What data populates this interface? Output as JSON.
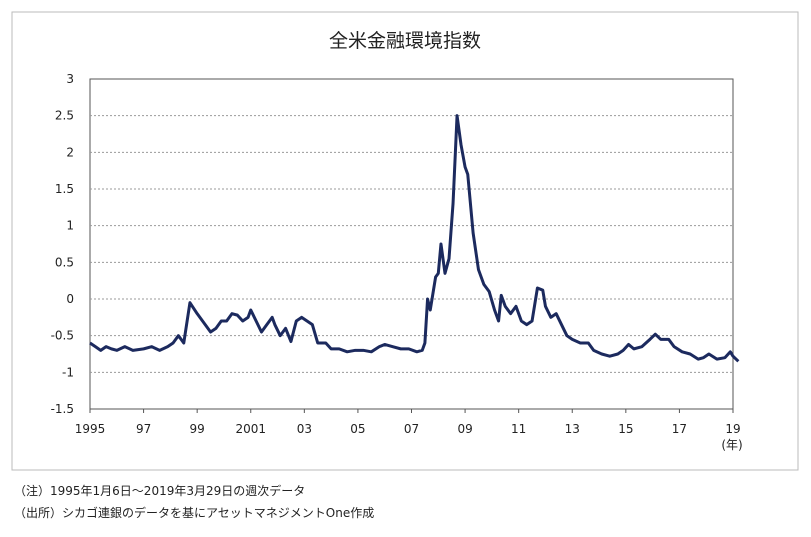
{
  "chart_data": {
    "type": "line",
    "title": "全米金融環境指数",
    "x_unit": "(年)",
    "notes": [
      "（注）1995年1月6日～2019年3月29日の週次データ",
      "（出所）シカゴ連銀のデータを基にアセットマネジメントOne作成"
    ],
    "xlim": [
      1995,
      2019
    ],
    "ylim": [
      -1.5,
      3
    ],
    "xticks": [
      1995,
      {
        "value": 1997,
        "label": "97"
      },
      {
        "value": 1999,
        "label": "99"
      },
      2001,
      {
        "value": 2003,
        "label": "03"
      },
      {
        "value": 2005,
        "label": "05"
      },
      {
        "value": 2007,
        "label": "07"
      },
      {
        "value": 2009,
        "label": "09"
      },
      {
        "value": 2011,
        "label": "11"
      },
      {
        "value": 2013,
        "label": "13"
      },
      {
        "value": 2015,
        "label": "15"
      },
      {
        "value": 2017,
        "label": "17"
      },
      {
        "value": 2019,
        "label": "19"
      }
    ],
    "yticks": [
      3,
      2.5,
      2,
      1.5,
      1,
      0.5,
      0,
      -0.5,
      -1,
      -1.5
    ],
    "grid": true,
    "color": "#1c2a5e",
    "x": [
      1995.0,
      1995.2,
      1995.4,
      1995.6,
      1995.8,
      1996.0,
      1996.3,
      1996.6,
      1997.0,
      1997.3,
      1997.6,
      1997.9,
      1998.1,
      1998.3,
      1998.5,
      1998.73,
      1999.0,
      1999.3,
      1999.5,
      1999.7,
      1999.9,
      2000.1,
      2000.3,
      2000.5,
      2000.7,
      2000.9,
      2001.0,
      2001.2,
      2001.4,
      2001.6,
      2001.8,
      2001.9,
      2002.1,
      2002.3,
      2002.5,
      2002.7,
      2002.9,
      2003.1,
      2003.3,
      2003.5,
      2003.8,
      2004.0,
      2004.3,
      2004.6,
      2004.9,
      2005.2,
      2005.5,
      2005.8,
      2006.0,
      2006.3,
      2006.6,
      2006.9,
      2007.2,
      2007.4,
      2007.5,
      2007.6,
      2007.7,
      2007.9,
      2008.0,
      2008.1,
      2008.25,
      2008.4,
      2008.55,
      2008.7,
      2008.85,
      2009.0,
      2009.1,
      2009.3,
      2009.5,
      2009.7,
      2009.9,
      2010.1,
      2010.25,
      2010.35,
      2010.5,
      2010.7,
      2010.9,
      2011.1,
      2011.3,
      2011.5,
      2011.7,
      2011.9,
      2012.0,
      2012.2,
      2012.4,
      2012.6,
      2012.8,
      2013.0,
      2013.3,
      2013.6,
      2013.8,
      2014.1,
      2014.4,
      2014.7,
      2014.9,
      2015.1,
      2015.3,
      2015.6,
      2015.9,
      2016.1,
      2016.3,
      2016.6,
      2016.8,
      2017.1,
      2017.4,
      2017.7,
      2017.9,
      2018.1,
      2018.4,
      2018.7,
      2018.9,
      2019.0,
      2019.2
    ],
    "values": [
      -0.6,
      -0.65,
      -0.7,
      -0.65,
      -0.68,
      -0.7,
      -0.65,
      -0.7,
      -0.68,
      -0.65,
      -0.7,
      -0.65,
      -0.6,
      -0.5,
      -0.6,
      -0.05,
      -0.2,
      -0.35,
      -0.45,
      -0.4,
      -0.3,
      -0.3,
      -0.2,
      -0.22,
      -0.3,
      -0.25,
      -0.15,
      -0.3,
      -0.45,
      -0.35,
      -0.25,
      -0.35,
      -0.5,
      -0.4,
      -0.58,
      -0.3,
      -0.25,
      -0.3,
      -0.35,
      -0.6,
      -0.6,
      -0.68,
      -0.68,
      -0.72,
      -0.7,
      -0.7,
      -0.72,
      -0.65,
      -0.62,
      -0.65,
      -0.68,
      -0.68,
      -0.72,
      -0.7,
      -0.6,
      0.0,
      -0.15,
      0.3,
      0.35,
      0.75,
      0.35,
      0.55,
      1.3,
      2.5,
      2.1,
      1.8,
      1.7,
      0.9,
      0.4,
      0.2,
      0.1,
      -0.15,
      -0.3,
      0.05,
      -0.1,
      -0.2,
      -0.1,
      -0.3,
      -0.35,
      -0.3,
      0.15,
      0.12,
      -0.1,
      -0.25,
      -0.2,
      -0.35,
      -0.5,
      -0.55,
      -0.6,
      -0.6,
      -0.7,
      -0.75,
      -0.78,
      -0.75,
      -0.7,
      -0.62,
      -0.68,
      -0.65,
      -0.55,
      -0.48,
      -0.55,
      -0.55,
      -0.65,
      -0.72,
      -0.75,
      -0.82,
      -0.8,
      -0.75,
      -0.82,
      -0.8,
      -0.72,
      -0.78,
      -0.85
    ]
  }
}
